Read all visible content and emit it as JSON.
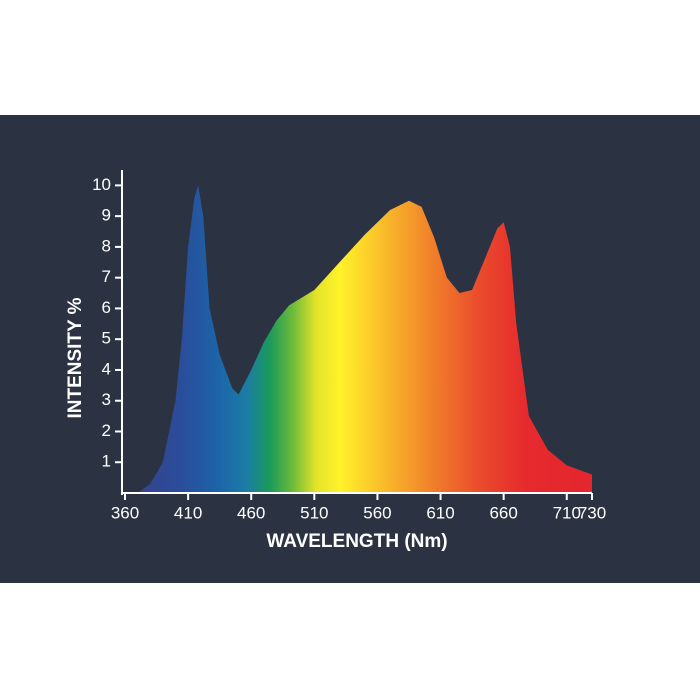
{
  "chart_data": {
    "type": "area",
    "x_label": "WAVELENGTH (Nm)",
    "y_label": "INTENSITY %",
    "x": [
      370,
      380,
      390,
      400,
      405,
      410,
      415,
      418,
      422,
      427,
      435,
      445,
      450,
      460,
      470,
      480,
      490,
      510,
      530,
      550,
      570,
      585,
      595,
      605,
      615,
      625,
      635,
      645,
      655,
      660,
      665,
      670,
      680,
      695,
      710,
      730
    ],
    "values": [
      0,
      0.3,
      1,
      3,
      5,
      8,
      9.6,
      10,
      9,
      6,
      4.5,
      3.4,
      3.2,
      4,
      4.9,
      5.6,
      6.1,
      6.6,
      7.5,
      8.4,
      9.2,
      9.5,
      9.3,
      8.3,
      7,
      6.5,
      6.6,
      7.6,
      8.6,
      8.8,
      8,
      5.5,
      2.5,
      1.4,
      0.9,
      0.6
    ],
    "xlim": [
      360,
      730
    ],
    "ylim": [
      0,
      10.5
    ],
    "xticks": [
      360,
      410,
      460,
      510,
      560,
      610,
      660,
      710,
      730
    ],
    "yticks": [
      1,
      2,
      3,
      4,
      5,
      6,
      7,
      8,
      9,
      10
    ]
  }
}
